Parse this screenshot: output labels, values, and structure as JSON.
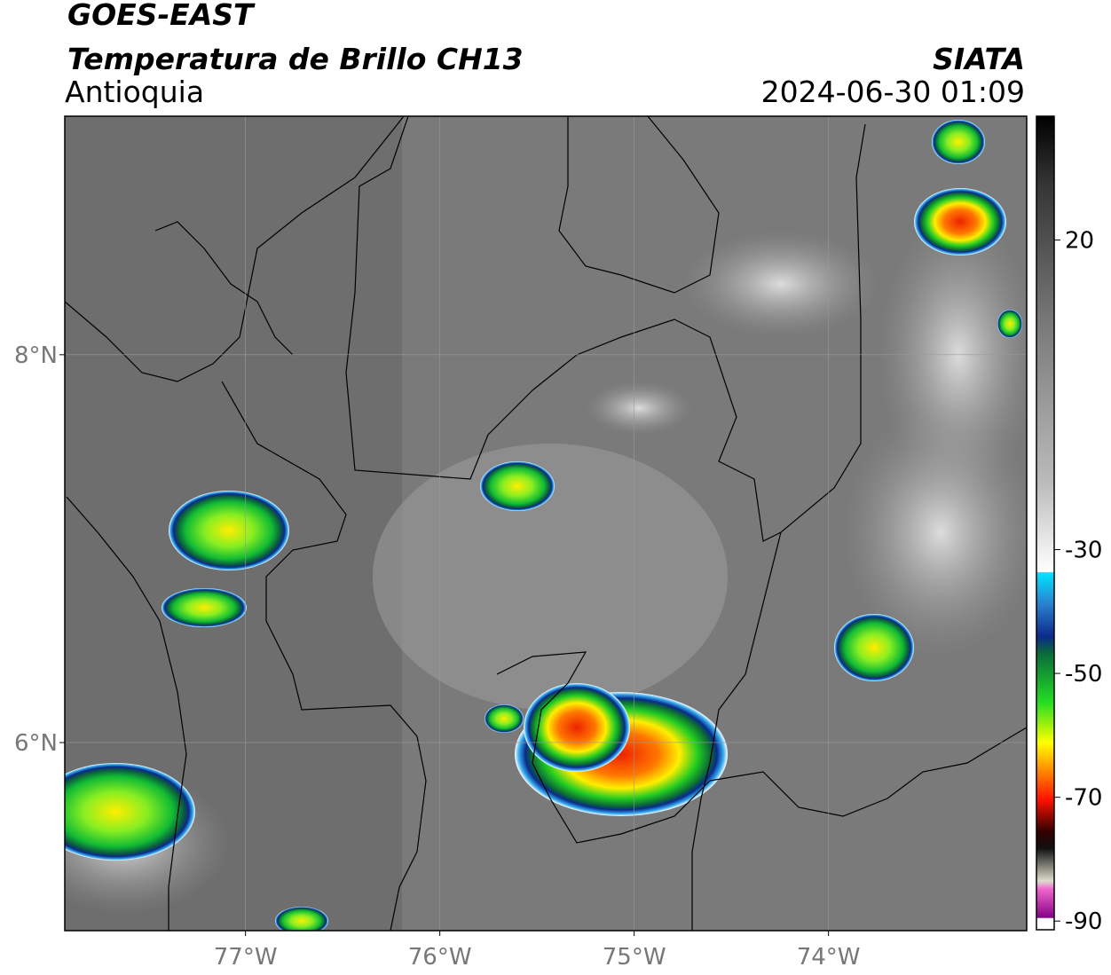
{
  "header": {
    "satellite": "GOES-EAST",
    "product": "Temperatura de Brillo CH13",
    "region": "Antioquia",
    "agency": "SIATA",
    "datetime": "2024-06-30 01:09"
  },
  "map": {
    "xlim": [
      -77.93,
      -72.98
    ],
    "ylim": [
      5.03,
      9.23
    ],
    "xticks": [
      {
        "value": -77,
        "label": "77°W"
      },
      {
        "value": -76,
        "label": "76°W"
      },
      {
        "value": -75,
        "label": "75°W"
      },
      {
        "value": -74,
        "label": "74°W"
      }
    ],
    "yticks": [
      {
        "value": 6,
        "label": "6°N"
      },
      {
        "value": 8,
        "label": "8°N"
      }
    ],
    "grid": true
  },
  "colorbar": {
    "lim": [
      -91.4,
      40
    ],
    "ticks": [
      20,
      -30,
      -50,
      -70,
      -90
    ]
  }
}
